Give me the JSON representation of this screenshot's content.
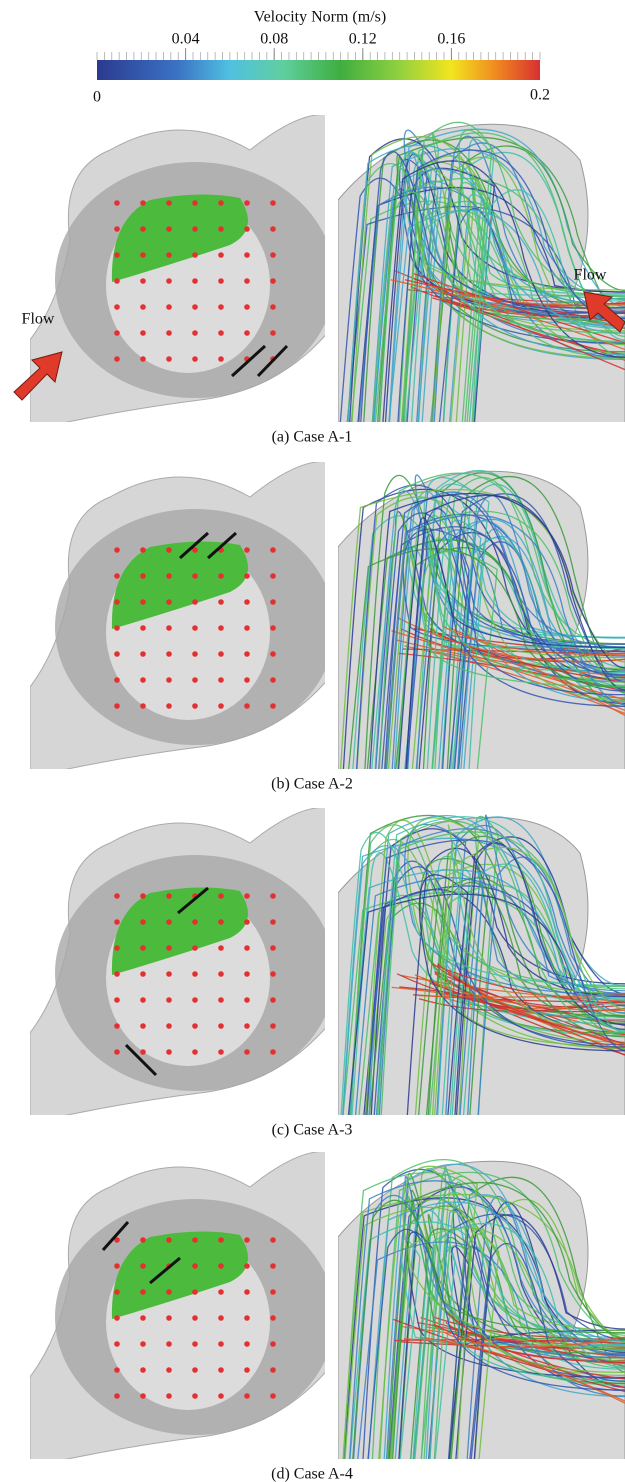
{
  "colorbar": {
    "title": "Velocity Norm (m/s)",
    "lim": [
      0,
      0.2
    ],
    "ticks": [
      0.04,
      0.08,
      0.12,
      0.16
    ],
    "end_labels": [
      "0",
      "0.2"
    ]
  },
  "annotations": [
    "Flow",
    "Flow"
  ],
  "panels": [
    {
      "caption": "(a) Case A-1"
    },
    {
      "caption": "(b) Case A-2"
    },
    {
      "caption": "(c)  Case A-3"
    },
    {
      "caption": "(d)  Case A-4"
    }
  ]
}
